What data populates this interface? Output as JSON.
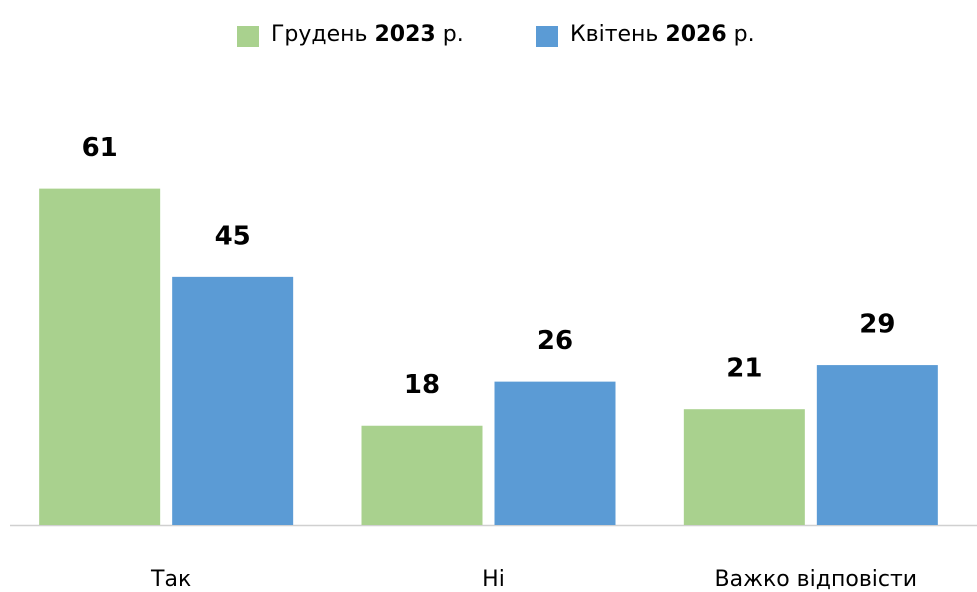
{
  "chart_data": {
    "type": "bar",
    "categories": [
      "Так",
      "Ні",
      "Важко відповісти"
    ],
    "series": [
      {
        "name": "Грудень 2023 р.",
        "color": "#a9d18e",
        "values": [
          61,
          18,
          21
        ]
      },
      {
        "name": "Квітень 2026 р.",
        "color": "#5b9bd5",
        "values": [
          45,
          26,
          29
        ]
      }
    ],
    "ylim": [
      0,
      70
    ]
  }
}
